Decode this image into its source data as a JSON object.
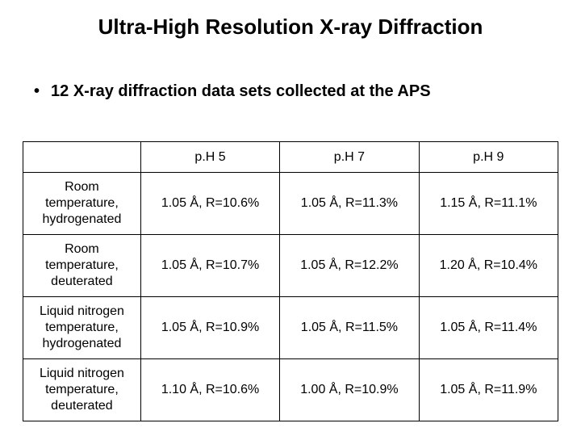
{
  "title": "Ultra-High Resolution X-ray Diffraction",
  "bullet": "12 X-ray diffraction data sets collected at the APS",
  "table": {
    "columns": [
      "",
      "p.H 5",
      "p.H 7",
      "p.H 9"
    ],
    "rows": [
      {
        "label": "Room temperature, hydrogenated",
        "cells": [
          "1.05 Å, R=10.6%",
          "1.05 Å, R=11.3%",
          "1.15 Å, R=11.1%"
        ]
      },
      {
        "label": "Room temperature, deuterated",
        "cells": [
          "1.05 Å, R=10.7%",
          "1.05 Å, R=12.2%",
          "1.20 Å, R=10.4%"
        ]
      },
      {
        "label": "Liquid nitrogen temperature, hydrogenated",
        "cells": [
          "1.05 Å, R=10.9%",
          "1.05 Å, R=11.5%",
          "1.05 Å, R=11.4%"
        ]
      },
      {
        "label": "Liquid nitrogen temperature, deuterated",
        "cells": [
          "1.10 Å, R=10.6%",
          "1.00 Å, R=10.9%",
          "1.05 Å, R=11.9%"
        ]
      }
    ],
    "font_size": 16,
    "border_color": "#000000",
    "background_color": "#ffffff"
  }
}
